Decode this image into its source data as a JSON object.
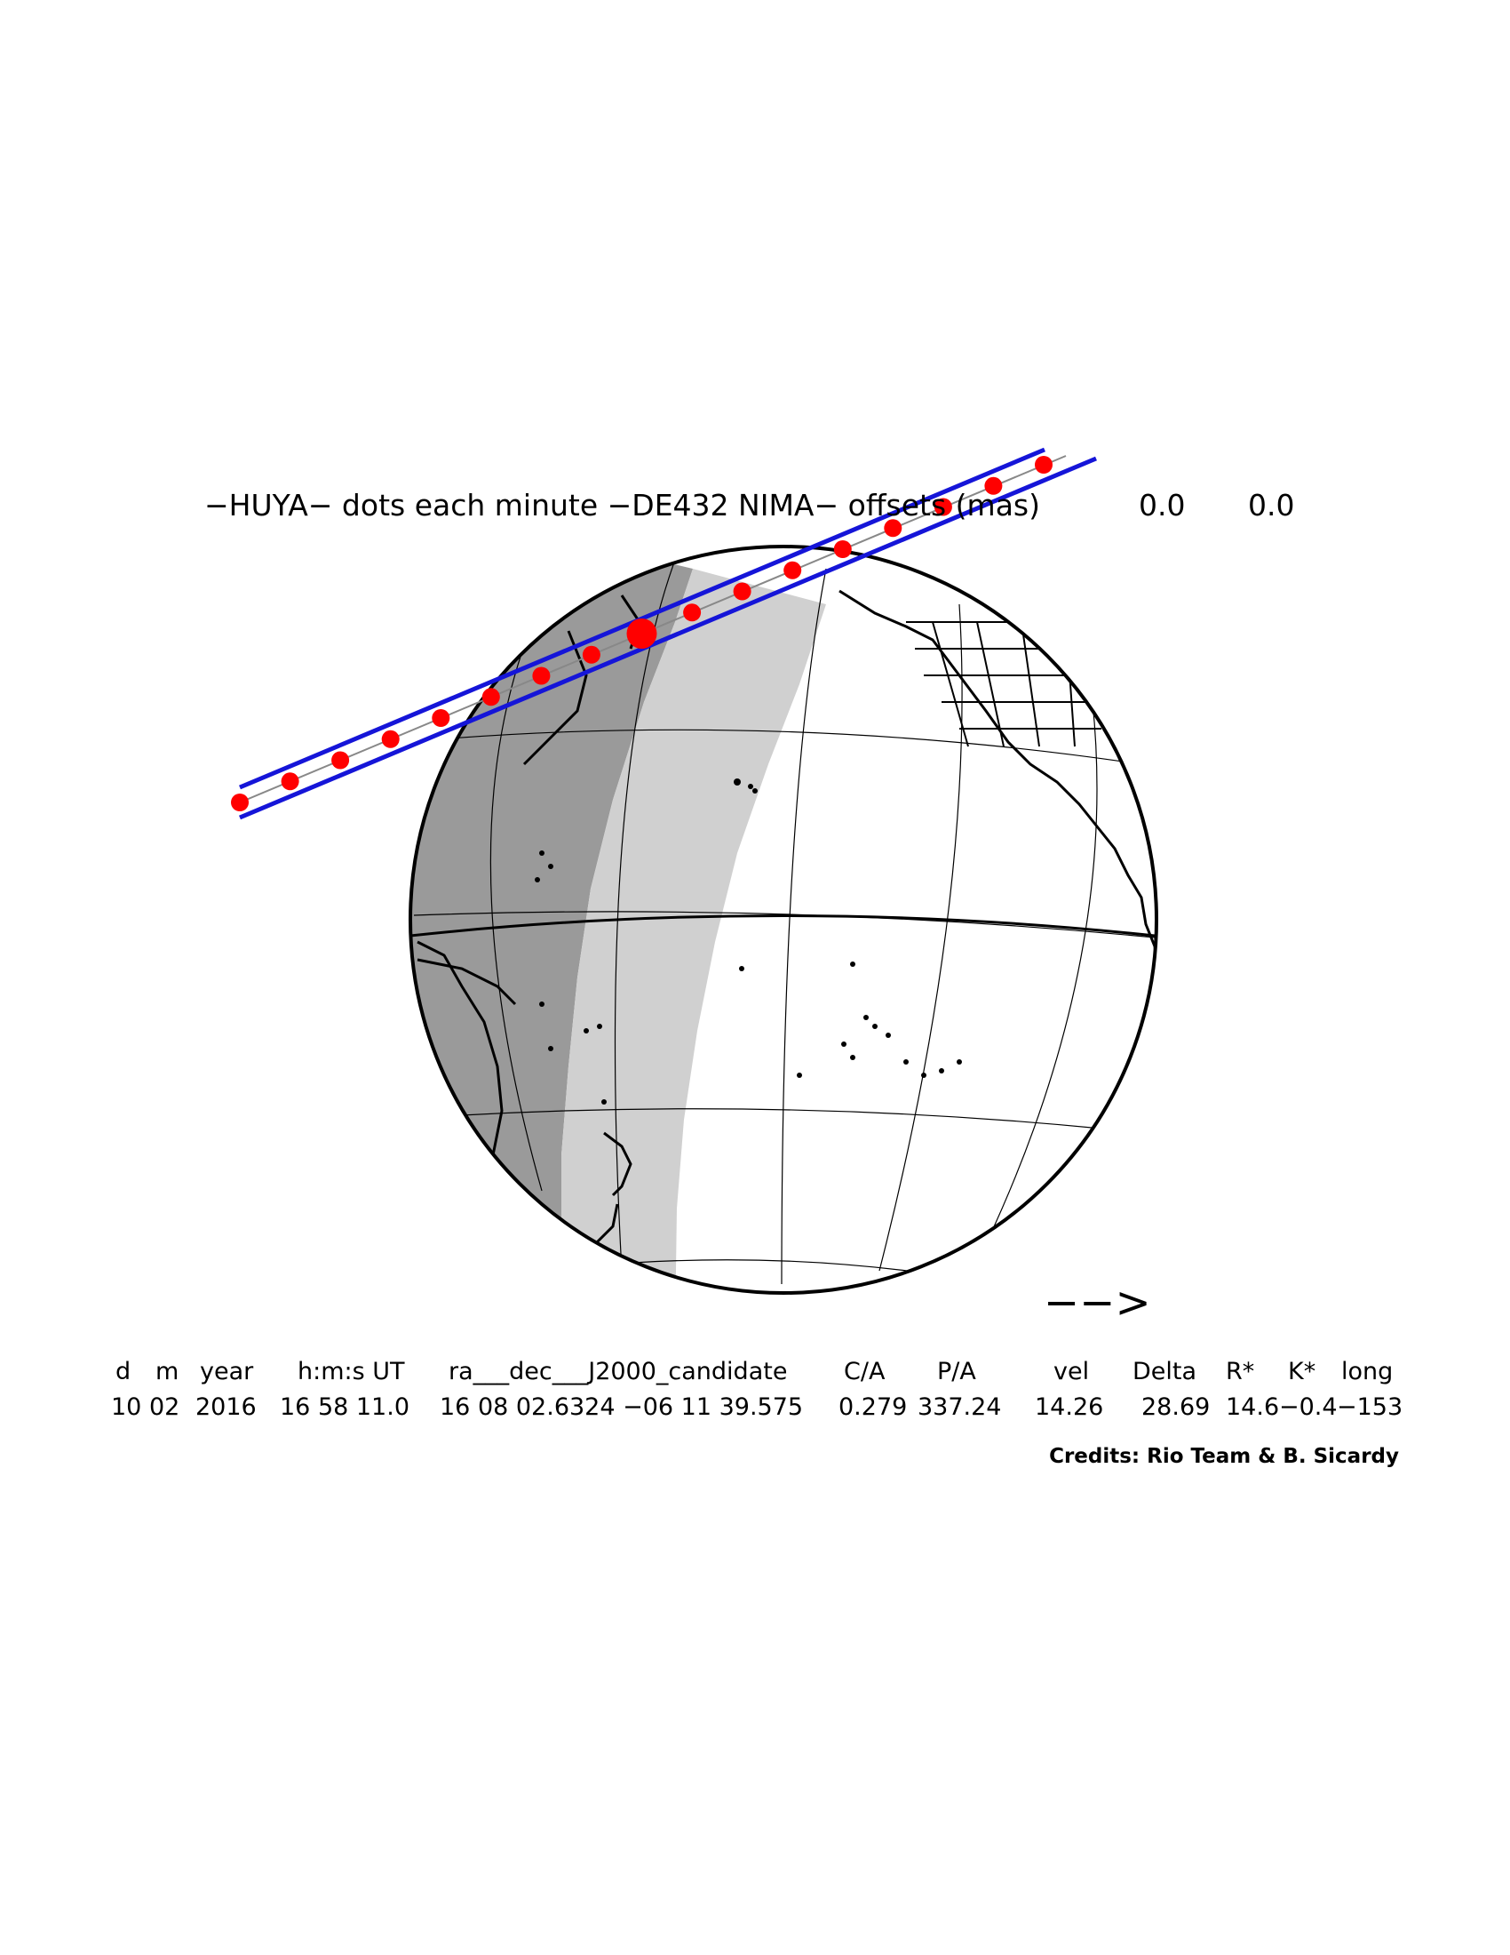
{
  "title": {
    "text": "−HUYA− dots each minute −DE432 NIMA− offsets (mas)",
    "offset_ra": "0.0",
    "offset_dec": "0.0"
  },
  "direction_arrow": "−−>",
  "table": {
    "headers": [
      "d",
      "m",
      "year",
      "h:m:s UT",
      "ra___dec___J2000_candidate",
      "C/A",
      "P/A",
      "vel",
      "Delta",
      "R*",
      "K*",
      "long"
    ],
    "values": [
      "10",
      "02",
      "2016",
      "16 58 11.0",
      "16 08 02.6324 −06 11 39.575",
      "0.279",
      "337.24",
      "14.26",
      "28.69",
      "14.6",
      "−0.4",
      "−153"
    ]
  },
  "credits": "Credits: Rio Team & B. Sicardy",
  "colors": {
    "path_limits": "#1515d8",
    "centerline": "#888888",
    "dots": "#ff0000",
    "night": "#9a9a9a",
    "twilight": "#d0d0d0",
    "day": "#ffffff",
    "outline": "#000000"
  },
  "map": {
    "projection": "orthographic",
    "path": {
      "n_dots": 17,
      "closest_approach_index": 8
    }
  }
}
